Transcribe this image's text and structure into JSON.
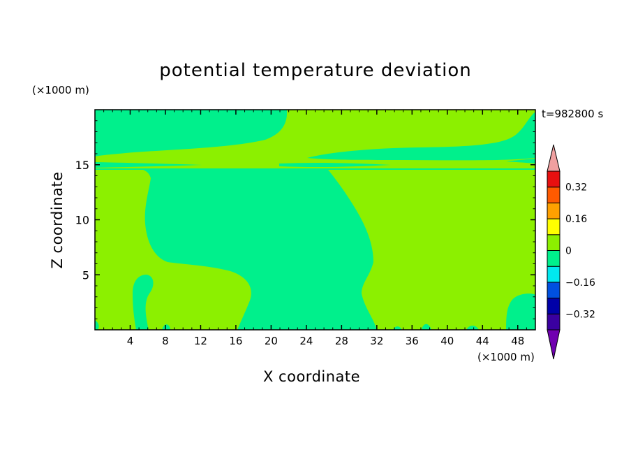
{
  "chart_data": {
    "type": "heatmap",
    "title": "potential temperature deviation",
    "xlabel": "X coordinate",
    "ylabel": "Z coordinate",
    "x_multiplier": "(×1000 m)",
    "y_multiplier": "(×1000 m)",
    "time_label": "t=982800 s",
    "xlim": [
      0,
      50
    ],
    "ylim": [
      0,
      20
    ],
    "x_ticks": [
      4,
      8,
      12,
      16,
      20,
      24,
      28,
      32,
      36,
      40,
      44,
      48
    ],
    "x_tick_labels": [
      "4",
      "8",
      "12",
      "16",
      "20",
      "24",
      "28",
      "32",
      "36",
      "40",
      "44",
      "48"
    ],
    "y_ticks": [
      5,
      10,
      15
    ],
    "y_tick_labels": [
      "5",
      "10",
      "15"
    ],
    "colorbar": {
      "levels": [
        -0.4,
        -0.32,
        -0.24,
        -0.16,
        -0.08,
        0,
        0.08,
        0.16,
        0.24,
        0.32,
        0.4
      ],
      "tick_values": [
        -0.32,
        -0.16,
        0,
        0.16,
        0.32
      ],
      "tick_labels": [
        "−0.32",
        "−0.16",
        "0",
        "0.16",
        "0.32"
      ],
      "colors": [
        "#3a00a0",
        "#0000a8",
        "#0050e0",
        "#00e8f0",
        "#00f08c",
        "#8cf000",
        "#ffff00",
        "#ffa000",
        "#ff5a00",
        "#e81010"
      ],
      "under_color": "#7000b0",
      "over_color": "#f0a0a0"
    },
    "regions": [
      {
        "label": "0 to 0.08",
        "color": "#8cf000",
        "role": "background"
      },
      {
        "label": "-0.08 to 0",
        "color": "#00f08c",
        "role": "contours"
      }
    ]
  }
}
